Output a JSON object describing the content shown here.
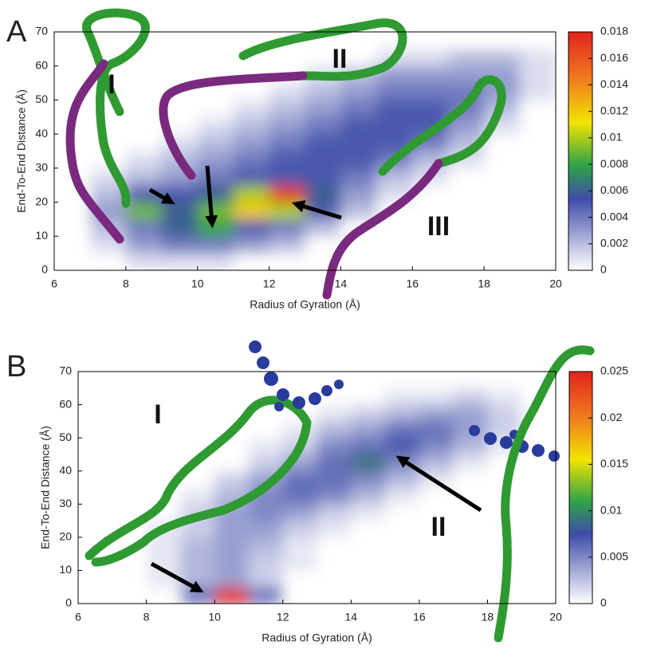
{
  "chart_data": [
    {
      "type": "heatmap",
      "panel_label": "A",
      "xlabel": "Radius of Gyration (Å)",
      "ylabel": "End-To-End Distance (Å)",
      "x": [
        6.5,
        7.5,
        8.5,
        9.5,
        10.5,
        11.5,
        12.5,
        13.5,
        14.5,
        15.5,
        16.5,
        17.5,
        18.5,
        19.5
      ],
      "y": [
        2.5,
        7.5,
        12.5,
        17.5,
        22.5,
        27.5,
        32.5,
        37.5,
        42.5,
        47.5,
        52.5,
        57.5,
        62.5,
        67.5
      ],
      "z": [
        [
          0,
          0,
          0.001,
          0.001,
          0.001,
          0,
          0,
          0,
          0,
          0,
          0,
          0,
          0,
          0
        ],
        [
          0,
          0.001,
          0.003,
          0.004,
          0.004,
          0.003,
          0.002,
          0,
          0,
          0,
          0,
          0,
          0,
          0
        ],
        [
          0,
          0.002,
          0.004,
          0.006,
          0.008,
          0.005,
          0.004,
          0.002,
          0,
          0,
          0,
          0,
          0,
          0
        ],
        [
          0,
          0.003,
          0.009,
          0.006,
          0.009,
          0.012,
          0.01,
          0.005,
          0.002,
          0,
          0,
          0,
          0,
          0
        ],
        [
          0,
          0.002,
          0.005,
          0.005,
          0.006,
          0.01,
          0.017,
          0.006,
          0.003,
          0.001,
          0,
          0,
          0,
          0
        ],
        [
          0,
          0.001,
          0.002,
          0.003,
          0.004,
          0.005,
          0.005,
          0.005,
          0.004,
          0.002,
          0.001,
          0,
          0,
          0
        ],
        [
          0,
          0,
          0.001,
          0.002,
          0.003,
          0.004,
          0.005,
          0.005,
          0.005,
          0.004,
          0.002,
          0.001,
          0,
          0
        ],
        [
          0,
          0,
          0,
          0.001,
          0.002,
          0.003,
          0.004,
          0.005,
          0.005,
          0.005,
          0.004,
          0.002,
          0,
          0
        ],
        [
          0,
          0,
          0,
          0,
          0.001,
          0.002,
          0.003,
          0.004,
          0.005,
          0.005,
          0.005,
          0.003,
          0.001,
          0
        ],
        [
          0,
          0,
          0,
          0,
          0,
          0.001,
          0.002,
          0.003,
          0.004,
          0.005,
          0.005,
          0.004,
          0.002,
          0
        ],
        [
          0,
          0,
          0,
          0,
          0,
          0,
          0.001,
          0.002,
          0.003,
          0.004,
          0.004,
          0.004,
          0.003,
          0.001
        ],
        [
          0,
          0,
          0,
          0,
          0,
          0,
          0,
          0.001,
          0.002,
          0.003,
          0.003,
          0.003,
          0.003,
          0.001
        ],
        [
          0,
          0,
          0,
          0,
          0,
          0,
          0,
          0,
          0,
          0.001,
          0.001,
          0.002,
          0.002,
          0.001
        ],
        [
          0,
          0,
          0,
          0,
          0,
          0,
          0,
          0,
          0,
          0,
          0,
          0,
          0,
          0
        ]
      ],
      "xlim": [
        6,
        20
      ],
      "ylim": [
        0,
        70
      ],
      "xticks": [
        6,
        8,
        10,
        12,
        14,
        16,
        18,
        20
      ],
      "yticks": [
        0,
        10,
        20,
        30,
        40,
        50,
        60,
        70
      ],
      "zlim": [
        0,
        0.018
      ],
      "zticks": [
        0,
        0.002,
        0.004,
        0.006,
        0.008,
        0.01,
        0.012,
        0.014,
        0.016,
        0.018
      ],
      "colormap": [
        "#ffffff",
        "#3e4ca8",
        "#2ea348",
        "#f2e400",
        "#f07d1e",
        "#e2231c"
      ],
      "annotations": [
        "I",
        "II",
        "III"
      ]
    },
    {
      "type": "heatmap",
      "panel_label": "B",
      "xlabel": "Radius of Gyration (Å)",
      "ylabel": "End-To-End Distance (Å)",
      "x": [
        6.5,
        7.5,
        8.5,
        9.5,
        10.5,
        11.5,
        12.5,
        13.5,
        14.5,
        15.5,
        16.5,
        17.5,
        18.5,
        19.5
      ],
      "y": [
        2.5,
        7.5,
        12.5,
        17.5,
        22.5,
        27.5,
        32.5,
        37.5,
        42.5,
        47.5,
        52.5,
        57.5,
        62.5,
        67.5
      ],
      "z": [
        [
          0,
          0,
          0,
          0.006,
          0.025,
          0.006,
          0,
          0,
          0,
          0,
          0,
          0,
          0,
          0
        ],
        [
          0,
          0,
          0.001,
          0.003,
          0.004,
          0.002,
          0,
          0,
          0,
          0,
          0,
          0,
          0,
          0
        ],
        [
          0,
          0,
          0.001,
          0.003,
          0.004,
          0.002,
          0.001,
          0,
          0,
          0,
          0,
          0,
          0,
          0
        ],
        [
          0,
          0,
          0.001,
          0.003,
          0.004,
          0.003,
          0.001,
          0,
          0,
          0,
          0,
          0,
          0,
          0
        ],
        [
          0,
          0,
          0.001,
          0.002,
          0.004,
          0.004,
          0.002,
          0.001,
          0,
          0,
          0,
          0,
          0,
          0
        ],
        [
          0,
          0,
          0,
          0.002,
          0.004,
          0.005,
          0.004,
          0.002,
          0.001,
          0,
          0,
          0,
          0,
          0
        ],
        [
          0,
          0,
          0,
          0.001,
          0.003,
          0.005,
          0.006,
          0.005,
          0.003,
          0.001,
          0,
          0,
          0,
          0
        ],
        [
          0,
          0,
          0,
          0,
          0.002,
          0.004,
          0.006,
          0.006,
          0.005,
          0.003,
          0.001,
          0,
          0,
          0
        ],
        [
          0,
          0,
          0,
          0,
          0,
          0.002,
          0.004,
          0.006,
          0.009,
          0.005,
          0.003,
          0.001,
          0,
          0
        ],
        [
          0,
          0,
          0,
          0,
          0,
          0.001,
          0.002,
          0.005,
          0.006,
          0.007,
          0.005,
          0.003,
          0.001,
          0
        ],
        [
          0,
          0,
          0,
          0,
          0,
          0,
          0.001,
          0.003,
          0.004,
          0.006,
          0.006,
          0.004,
          0.002,
          0
        ],
        [
          0,
          0,
          0,
          0,
          0,
          0,
          0,
          0.001,
          0.002,
          0.003,
          0.004,
          0.004,
          0.002,
          0
        ],
        [
          0,
          0,
          0,
          0,
          0,
          0,
          0,
          0,
          0,
          0.001,
          0.001,
          0.002,
          0.001,
          0
        ],
        [
          0,
          0,
          0,
          0,
          0,
          0,
          0,
          0,
          0,
          0,
          0,
          0,
          0,
          0
        ]
      ],
      "xlim": [
        6,
        20
      ],
      "ylim": [
        0,
        70
      ],
      "xticks": [
        6,
        8,
        10,
        12,
        14,
        16,
        18,
        20
      ],
      "yticks": [
        0,
        10,
        20,
        30,
        40,
        50,
        60,
        70
      ],
      "zlim": [
        0,
        0.025
      ],
      "zticks": [
        0,
        0.005,
        0.01,
        0.015,
        0.02,
        0.025
      ],
      "colormap": [
        "#ffffff",
        "#3e4ca8",
        "#2ea348",
        "#f2e400",
        "#f07d1e",
        "#e2231c"
      ],
      "annotations": [
        "I",
        "II"
      ]
    }
  ]
}
